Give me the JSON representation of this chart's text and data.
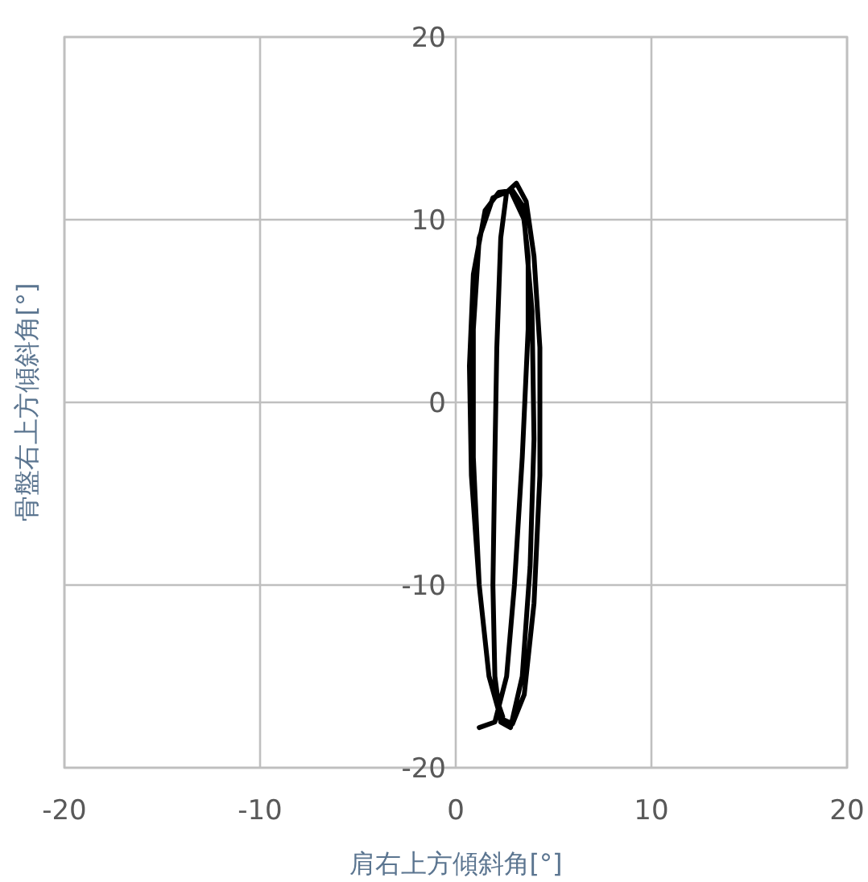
{
  "chart_data": {
    "type": "line",
    "xlabel": "肩右上方傾斜角[°]",
    "ylabel": "骨盤右上方傾斜角[°]",
    "xlim": [
      -20,
      20
    ],
    "ylim": [
      -20,
      20
    ],
    "xticks": [
      -20,
      -10,
      0,
      10,
      20
    ],
    "yticks": [
      -20,
      -10,
      0,
      10,
      20
    ],
    "grid": true,
    "marker": "none",
    "line_style": "solid",
    "series": [
      {
        "color": "#000000",
        "x": [
          1.2,
          2.0,
          2.6,
          3.0,
          3.4,
          3.7,
          3.7,
          3.4,
          2.9,
          2.2,
          1.5,
          0.9,
          0.7,
          0.8,
          1.2,
          1.7,
          2.3,
          2.9,
          3.5,
          4.0,
          4.3,
          4.3,
          4.0,
          3.6,
          3.1,
          2.6,
          2.3,
          2.1,
          2.0,
          1.9,
          2.0,
          2.3,
          2.8,
          3.4,
          3.8,
          4.0,
          3.9,
          3.5,
          2.8,
          1.9,
          1.2,
          0.9,
          0.9,
          1.2,
          1.7,
          2.4
        ],
        "values": [
          -17.8,
          -17.5,
          -15,
          -10,
          -3,
          4,
          8,
          10.8,
          11.6,
          11.5,
          10.5,
          7,
          2,
          -4,
          -10,
          -15,
          -17.3,
          -17.6,
          -16,
          -11,
          -4,
          3,
          8,
          11,
          12,
          11.5,
          9,
          3,
          -3,
          -10,
          -15,
          -17.5,
          -17.8,
          -15,
          -9,
          -2,
          5,
          10,
          11.6,
          11.2,
          9,
          4,
          -3,
          -10,
          -15,
          -17.2
        ]
      }
    ]
  }
}
